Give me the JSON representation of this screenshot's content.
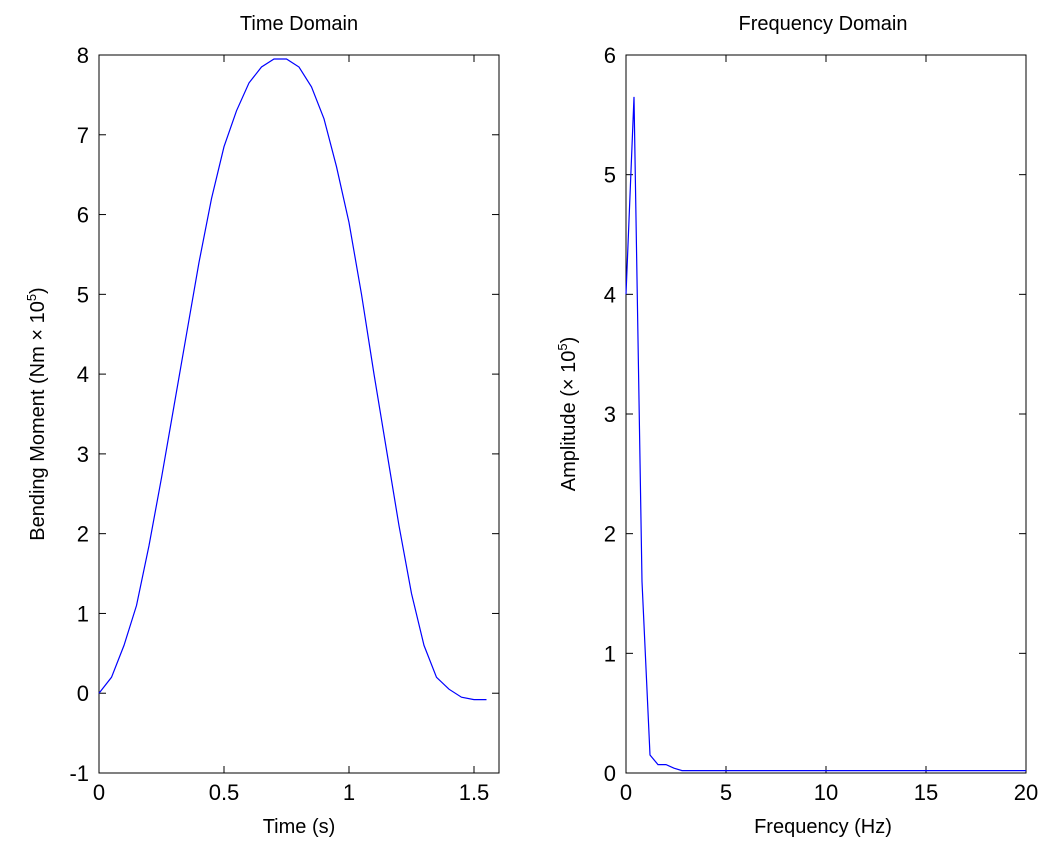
{
  "chart_data": [
    {
      "type": "line",
      "title": "Time Domain",
      "xlabel": "Time (s)",
      "ylabel": {
        "text": "Bending Moment (Nm × 10",
        "sup": "5",
        "end": ")"
      },
      "xlim": [
        0,
        1.6
      ],
      "ylim": [
        -1,
        8
      ],
      "xticks": [
        0,
        0.5,
        1,
        1.5
      ],
      "xtick_labels": [
        "0",
        "0.5",
        "1",
        "1.5"
      ],
      "yticks": [
        -1,
        0,
        1,
        2,
        3,
        4,
        5,
        6,
        7,
        8
      ],
      "ytick_labels": [
        "-1",
        "0",
        "1",
        "2",
        "3",
        "4",
        "5",
        "6",
        "7",
        "8"
      ],
      "grid": false,
      "series": [
        {
          "color": "#0000ff",
          "x": [
            0.0,
            0.05,
            0.1,
            0.15,
            0.2,
            0.25,
            0.3,
            0.35,
            0.4,
            0.45,
            0.5,
            0.55,
            0.6,
            0.65,
            0.7,
            0.75,
            0.8,
            0.85,
            0.9,
            0.95,
            1.0,
            1.05,
            1.1,
            1.15,
            1.2,
            1.25,
            1.3,
            1.35,
            1.4,
            1.45,
            1.5,
            1.52,
            1.55
          ],
          "y": [
            0.0,
            0.2,
            0.6,
            1.1,
            1.85,
            2.7,
            3.6,
            4.5,
            5.4,
            6.2,
            6.85,
            7.3,
            7.65,
            7.85,
            7.95,
            7.95,
            7.85,
            7.6,
            7.2,
            6.6,
            5.9,
            5.0,
            4.0,
            3.05,
            2.1,
            1.25,
            0.6,
            0.2,
            0.05,
            -0.05,
            -0.08,
            -0.08,
            -0.08
          ]
        }
      ]
    },
    {
      "type": "line",
      "title": "Frequency Domain",
      "xlabel": "Frequency (Hz)",
      "ylabel": {
        "text": "Amplitude (× 10",
        "sup": "5",
        "end": ")"
      },
      "xlim": [
        0,
        20
      ],
      "ylim": [
        0,
        6
      ],
      "xticks": [
        0,
        5,
        10,
        15,
        20
      ],
      "xtick_labels": [
        "0",
        "5",
        "10",
        "15",
        "20"
      ],
      "yticks": [
        0,
        1,
        2,
        3,
        4,
        5,
        6
      ],
      "ytick_labels": [
        "0",
        "1",
        "2",
        "3",
        "4",
        "5",
        "6"
      ],
      "grid": false,
      "series": [
        {
          "color": "#0000ff",
          "x": [
            0.0,
            0.4,
            0.8,
            1.2,
            1.6,
            2.0,
            2.4,
            2.8,
            3.2,
            5.0,
            10.0,
            15.0,
            20.0
          ],
          "y": [
            4.0,
            5.65,
            1.6,
            0.15,
            0.07,
            0.07,
            0.04,
            0.02,
            0.02,
            0.02,
            0.02,
            0.02,
            0.02
          ]
        }
      ]
    }
  ]
}
